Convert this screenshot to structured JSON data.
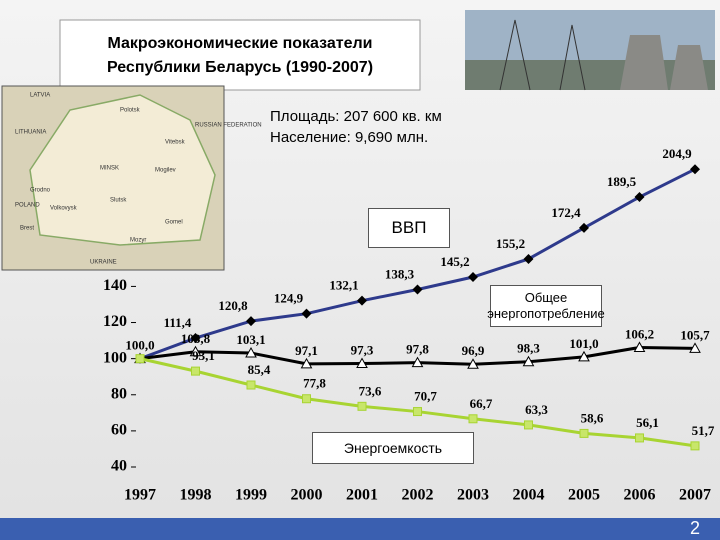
{
  "slide": {
    "title_lines": [
      "Макроэкономические показатели",
      "Республики Беларусь (1990-2007)"
    ],
    "area": "Площадь:   207 600 кв. км",
    "population": "Население: 9,690 млн.",
    "page_number": "2",
    "map_labels": [
      "LATVIA",
      "LITHUANIA",
      "Polotsk",
      "Vitebsk",
      "RUSSIAN FEDERATION",
      "MINSK",
      "Mogilev",
      "Grodno",
      "Volkovysk",
      "Slutsk",
      "Brest",
      "Gomel",
      "Mozyr",
      "POLAND",
      "UKRAINE"
    ]
  },
  "chart_data": {
    "type": "line",
    "categories": [
      "1997",
      "1998",
      "1999",
      "2000",
      "2001",
      "2002",
      "2003",
      "2004",
      "2005",
      "2006",
      "2007"
    ],
    "ylim": [
      40,
      210
    ],
    "yticks": [
      40,
      60,
      80,
      100,
      120,
      140
    ],
    "series": [
      {
        "name": "ВВП",
        "color": "#2e3a8c",
        "marker": "diamond",
        "values": [
          100,
          111.4,
          120.8,
          124.9,
          132.1,
          138.3,
          145.2,
          155.2,
          172.4,
          189.5,
          204.9
        ],
        "value_labels": [
          null,
          "111,4",
          "120,8",
          "124,9",
          "132,1",
          "138,3",
          "145,2",
          "155,2",
          "172,4",
          "189,5",
          "204,9"
        ]
      },
      {
        "name": "Общее энергопотребление",
        "color": "#000000",
        "marker": "triangle",
        "values": [
          100,
          103.8,
          103.1,
          97.1,
          97.3,
          97.8,
          96.9,
          98.3,
          101.0,
          106.2,
          105.7
        ],
        "value_labels": [
          "100,0",
          "103,8",
          "103,1",
          "97,1",
          "97,3",
          "97,8",
          "96,9",
          "98,3",
          "101,0",
          "106,2",
          "105,7"
        ]
      },
      {
        "name": "Энергоемкость",
        "color": "#a8d432",
        "marker": "square",
        "values": [
          100,
          93.1,
          85.4,
          77.8,
          73.6,
          70.7,
          66.7,
          63.3,
          58.6,
          56.1,
          51.7
        ],
        "value_labels": [
          null,
          "93,1",
          "85,4",
          "77,8",
          "73,6",
          "70,7",
          "66,7",
          "63,3",
          "58,6",
          "56,1",
          "51,7"
        ]
      }
    ]
  }
}
